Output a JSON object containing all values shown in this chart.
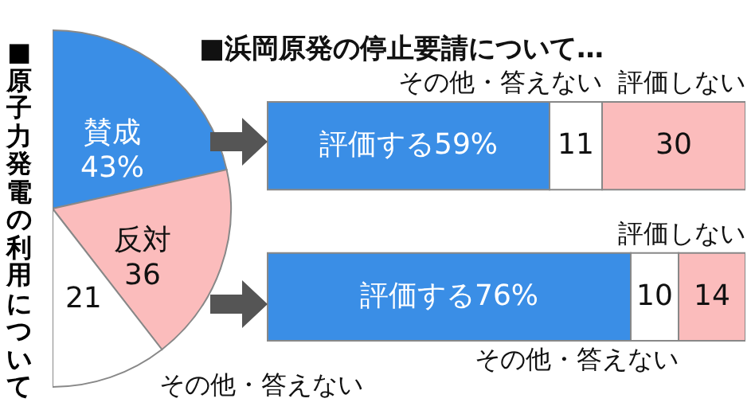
{
  "chart_data": [
    {
      "type": "pie",
      "title": "■原子力発電の利用について",
      "categories": [
        "賛成",
        "反対",
        "その他・答えない"
      ],
      "values": [
        43,
        36,
        21
      ],
      "value_labels": [
        "43%",
        "36",
        "21"
      ],
      "colors": [
        "#3a8ee6",
        "#fbbcbc",
        "#ffffff"
      ]
    },
    {
      "type": "bar",
      "orientation": "horizontal",
      "stacked": true,
      "title": "■浜岡原発の停止要請について…",
      "categories": [
        null,
        null
      ],
      "series": [
        {
          "name": "評価する",
          "color": "#3a8ee6",
          "values": [
            59,
            76
          ],
          "value_labels": [
            "59%",
            "76%"
          ]
        },
        {
          "name": "その他・答えない",
          "color": "#ffffff",
          "values": [
            11,
            10
          ],
          "value_labels": [
            "11",
            "10"
          ]
        },
        {
          "name": "評価しない",
          "color": "#fbbcbc",
          "values": [
            30,
            14
          ],
          "value_labels": [
            "30",
            "14"
          ]
        }
      ]
    }
  ]
}
